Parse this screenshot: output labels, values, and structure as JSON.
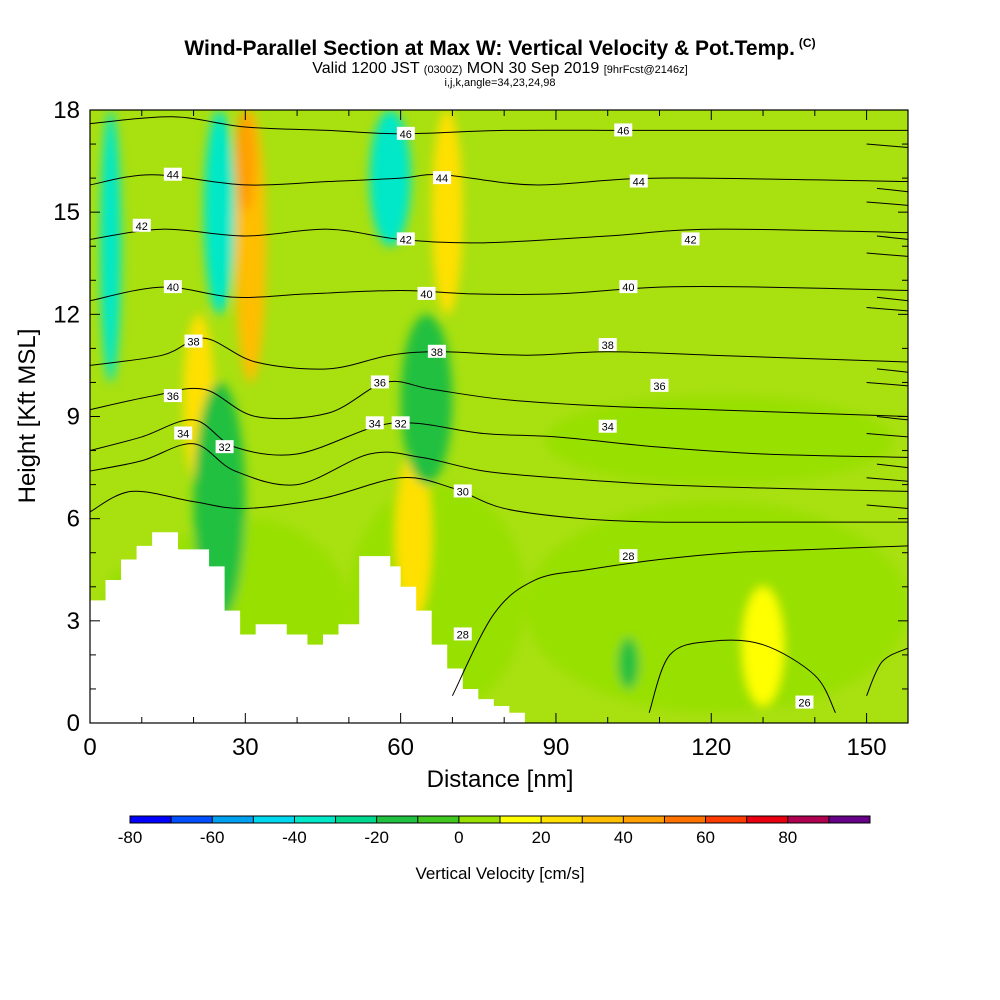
{
  "chart_data": {
    "type": "heatmap",
    "title": "Wind-Parallel Section at Max W: Vertical Velocity & Pot.Temp.",
    "title_flag": "(C)",
    "subtitle_main": "Valid 1200 JST",
    "subtitle_utc": "(0300Z)",
    "subtitle_date": "MON 30 Sep 2019",
    "subtitle_fcst": "[9hrFcst@2146z]",
    "subtitle2": "i,j,k,angle=34,23,24,98",
    "xlabel": "Distance [nm]",
    "ylabel": "Height [Kft MSL]",
    "xlim": [
      0,
      158
    ],
    "ylim": [
      0,
      18
    ],
    "x_ticks": [
      "0",
      "30",
      "60",
      "90",
      "120",
      "150"
    ],
    "y_ticks": [
      "0",
      "3",
      "6",
      "9",
      "12",
      "15",
      "18"
    ],
    "grid": false,
    "colorbar": {
      "label": "Vertical Velocity [cm/s]",
      "tick_labels": [
        "-80",
        "-60",
        "-40",
        "-20",
        "0",
        "20",
        "40",
        "60",
        "80"
      ],
      "levels": [
        -80,
        -70,
        -60,
        -50,
        -40,
        -30,
        -20,
        -10,
        0,
        10,
        20,
        30,
        40,
        50,
        60,
        70,
        80,
        90
      ],
      "colors": [
        "#0000ff",
        "#0050ff",
        "#00a0f0",
        "#00d8f0",
        "#00e8c8",
        "#00d890",
        "#20c040",
        "#40c820",
        "#98e000",
        "#ffff00",
        "#ffe000",
        "#ffbe00",
        "#ffa000",
        "#ff7200",
        "#ff3c00",
        "#e80010",
        "#b00050",
        "#660088"
      ]
    },
    "background_color": "#a8e010",
    "features": [
      {
        "name": "updraft",
        "x": [
          2,
          10
        ],
        "y": [
          0.5,
          4.5
        ],
        "value": 8
      },
      {
        "name": "updraft",
        "x": [
          10,
          50
        ],
        "y": [
          0.5,
          6.0
        ],
        "value": 6
      },
      {
        "name": "updraft",
        "x": [
          50,
          84
        ],
        "y": [
          0.3,
          7.0
        ],
        "value": 5
      },
      {
        "name": "updraft",
        "x": [
          84,
          158
        ],
        "y": [
          0.3,
          6.5
        ],
        "value": 7
      },
      {
        "name": "updraft",
        "x": [
          88,
          155
        ],
        "y": [
          7.0,
          9.6
        ],
        "value": 5
      },
      {
        "name": "updraft",
        "x": [
          28,
          34
        ],
        "y": [
          10,
          18
        ],
        "value": 30
      },
      {
        "name": "updraft",
        "x": [
          28,
          32
        ],
        "y": [
          15,
          18
        ],
        "value": 45
      },
      {
        "name": "updraft",
        "x": [
          66,
          72
        ],
        "y": [
          12,
          18
        ],
        "value": 25
      },
      {
        "name": "updraft",
        "x": [
          18,
          24
        ],
        "y": [
          7,
          12
        ],
        "value": 22
      },
      {
        "name": "updraft",
        "x": [
          59,
          66
        ],
        "y": [
          3,
          8
        ],
        "value": 20
      },
      {
        "name": "updraft",
        "x": [
          126,
          134
        ],
        "y": [
          0.5,
          4
        ],
        "value": 15
      },
      {
        "name": "downdraft",
        "x": [
          2,
          6
        ],
        "y": [
          10,
          18
        ],
        "value": -40
      },
      {
        "name": "downdraft",
        "x": [
          22,
          28
        ],
        "y": [
          12,
          18
        ],
        "value": -35
      },
      {
        "name": "downdraft",
        "x": [
          54,
          62
        ],
        "y": [
          14,
          18
        ],
        "value": -35
      },
      {
        "name": "downdraft",
        "x": [
          20,
          30
        ],
        "y": [
          3,
          10
        ],
        "value": -18
      },
      {
        "name": "downdraft",
        "x": [
          60,
          70
        ],
        "y": [
          7,
          12
        ],
        "value": -18
      },
      {
        "name": "downdraft",
        "x": [
          102,
          106
        ],
        "y": [
          1,
          2.5
        ],
        "value": -18
      }
    ],
    "terrain": {
      "x": [
        0,
        3,
        3,
        6,
        6,
        9,
        9,
        12,
        12,
        17,
        17,
        23,
        23,
        26,
        26,
        29,
        29,
        32,
        32,
        38,
        38,
        42,
        42,
        45,
        45,
        48,
        48,
        52,
        52,
        58,
        58,
        60,
        60,
        63,
        63,
        66,
        66,
        69,
        69,
        72,
        72,
        75,
        75,
        78,
        78,
        81,
        81,
        84,
        84
      ],
      "height": [
        3.6,
        3.6,
        4.2,
        4.2,
        4.8,
        4.8,
        5.2,
        5.2,
        5.6,
        5.6,
        5.1,
        5.1,
        4.6,
        4.6,
        3.3,
        3.3,
        2.6,
        2.6,
        2.9,
        2.9,
        2.6,
        2.6,
        2.3,
        2.3,
        2.6,
        2.6,
        2.9,
        2.9,
        4.9,
        4.9,
        4.6,
        4.6,
        4.0,
        4.0,
        3.3,
        3.3,
        2.3,
        2.3,
        1.6,
        1.6,
        1.0,
        1.0,
        0.7,
        0.7,
        0.5,
        0.5,
        0.3,
        0.3,
        0.0
      ]
    },
    "theta_contours": [
      {
        "level": "26",
        "label_at": [
          138,
          0.6
        ],
        "points": [
          [
            108,
            0.3
          ],
          [
            112,
            2.0
          ],
          [
            120,
            2.4
          ],
          [
            130,
            2.3
          ],
          [
            140,
            1.4
          ],
          [
            144,
            0.3
          ]
        ]
      },
      {
        "level": "28",
        "label_at": [
          72,
          2.6
        ],
        "points": [
          [
            70,
            0.8
          ],
          [
            78,
            3.2
          ],
          [
            86,
            4.2
          ],
          [
            96,
            4.5
          ],
          [
            110,
            4.8
          ],
          [
            124,
            5.0
          ],
          [
            140,
            5.1
          ],
          [
            158,
            5.2
          ]
        ]
      },
      {
        "level": "28",
        "label_at": [
          104,
          4.9
        ],
        "points": [
          [
            150,
            0.8
          ],
          [
            153,
            1.8
          ],
          [
            158,
            2.2
          ]
        ]
      },
      {
        "level": "30",
        "label_at": [
          72,
          6.8
        ],
        "points": [
          [
            0,
            6.2
          ],
          [
            8,
            6.8
          ],
          [
            20,
            6.5
          ],
          [
            30,
            6.3
          ],
          [
            45,
            6.6
          ],
          [
            60,
            7.2
          ],
          [
            70,
            6.9
          ],
          [
            80,
            6.3
          ],
          [
            95,
            6.0
          ],
          [
            110,
            5.9
          ],
          [
            130,
            5.9
          ],
          [
            158,
            5.9
          ]
        ]
      },
      {
        "level": "32",
        "label_at": [
          26,
          8.1
        ],
        "points": [
          [
            0,
            7.4
          ],
          [
            10,
            7.7
          ],
          [
            20,
            8.2
          ],
          [
            28,
            7.4
          ],
          [
            40,
            7.0
          ],
          [
            54,
            7.9
          ],
          [
            64,
            7.8
          ],
          [
            76,
            7.4
          ],
          [
            90,
            7.2
          ],
          [
            110,
            7.0
          ],
          [
            130,
            6.9
          ],
          [
            158,
            6.8
          ]
        ]
      },
      {
        "level": "32",
        "label_at": [
          60,
          8.8
        ],
        "points": [
          [
            150,
            6.4
          ],
          [
            158,
            6.3
          ]
        ]
      },
      {
        "level": "34",
        "label_at": [
          18,
          8.5
        ],
        "points": [
          [
            0,
            8.0
          ],
          [
            10,
            8.4
          ],
          [
            20,
            8.9
          ],
          [
            28,
            8.1
          ],
          [
            40,
            7.9
          ],
          [
            55,
            8.7
          ],
          [
            63,
            8.8
          ],
          [
            76,
            8.5
          ],
          [
            90,
            8.4
          ],
          [
            110,
            8.1
          ],
          [
            130,
            7.9
          ],
          [
            158,
            7.8
          ]
        ]
      },
      {
        "level": "34",
        "label_at": [
          55,
          8.8
        ],
        "points": [
          [
            150,
            7.2
          ],
          [
            158,
            7.1
          ]
        ]
      },
      {
        "level": "34",
        "label_at": [
          100,
          8.7
        ],
        "points": [
          [
            152,
            7.6
          ],
          [
            158,
            7.5
          ]
        ]
      },
      {
        "level": "36",
        "label_at": [
          16,
          9.6
        ],
        "points": [
          [
            0,
            9.2
          ],
          [
            12,
            9.6
          ],
          [
            22,
            9.8
          ],
          [
            32,
            9.0
          ],
          [
            46,
            9.1
          ],
          [
            57,
            10.0
          ],
          [
            66,
            9.8
          ],
          [
            80,
            9.5
          ],
          [
            100,
            9.3
          ],
          [
            120,
            9.2
          ],
          [
            158,
            9.0
          ]
        ]
      },
      {
        "level": "36",
        "label_at": [
          56,
          10.0
        ],
        "points": [
          [
            150,
            8.5
          ],
          [
            158,
            8.4
          ]
        ]
      },
      {
        "level": "36",
        "label_at": [
          110,
          9.9
        ],
        "points": [
          [
            152,
            9.0
          ],
          [
            158,
            8.9
          ]
        ]
      },
      {
        "level": "38",
        "label_at": [
          20,
          11.2
        ],
        "points": [
          [
            0,
            10.5
          ],
          [
            14,
            10.8
          ],
          [
            22,
            11.3
          ],
          [
            32,
            10.6
          ],
          [
            46,
            10.4
          ],
          [
            58,
            10.8
          ],
          [
            68,
            10.9
          ],
          [
            84,
            10.8
          ],
          [
            100,
            10.9
          ],
          [
            120,
            10.8
          ],
          [
            158,
            10.6
          ]
        ]
      },
      {
        "level": "38",
        "label_at": [
          67,
          10.9
        ],
        "points": [
          [
            150,
            10.0
          ],
          [
            158,
            9.9
          ]
        ]
      },
      {
        "level": "38",
        "label_at": [
          100,
          11.1
        ],
        "points": [
          [
            152,
            10.4
          ],
          [
            158,
            10.3
          ]
        ]
      },
      {
        "level": "40",
        "label_at": [
          16,
          12.8
        ],
        "points": [
          [
            0,
            12.4
          ],
          [
            14,
            12.8
          ],
          [
            28,
            12.5
          ],
          [
            42,
            12.6
          ],
          [
            60,
            12.7
          ],
          [
            74,
            12.6
          ],
          [
            90,
            12.6
          ],
          [
            110,
            12.8
          ],
          [
            130,
            12.8
          ],
          [
            158,
            12.7
          ]
        ]
      },
      {
        "level": "40",
        "label_at": [
          65,
          12.6
        ],
        "points": [
          [
            150,
            12.2
          ],
          [
            158,
            12.1
          ]
        ]
      },
      {
        "level": "40",
        "label_at": [
          104,
          12.8
        ],
        "points": [
          [
            152,
            12.5
          ],
          [
            158,
            12.4
          ]
        ]
      },
      {
        "level": "42",
        "label_at": [
          10,
          14.6
        ],
        "points": [
          [
            0,
            14.2
          ],
          [
            14,
            14.5
          ],
          [
            30,
            14.3
          ],
          [
            46,
            14.5
          ],
          [
            60,
            14.2
          ],
          [
            76,
            14.1
          ],
          [
            100,
            14.3
          ],
          [
            120,
            14.5
          ],
          [
            158,
            14.4
          ]
        ]
      },
      {
        "level": "42",
        "label_at": [
          61,
          14.2
        ],
        "points": [
          [
            150,
            13.8
          ],
          [
            158,
            13.7
          ]
        ]
      },
      {
        "level": "42",
        "label_at": [
          116,
          14.2
        ],
        "points": [
          [
            152,
            14.3
          ],
          [
            158,
            14.2
          ]
        ]
      },
      {
        "level": "44",
        "label_at": [
          16,
          16.1
        ],
        "points": [
          [
            0,
            15.8
          ],
          [
            12,
            16.1
          ],
          [
            30,
            15.8
          ],
          [
            46,
            15.9
          ],
          [
            60,
            16.0
          ],
          [
            68,
            16.1
          ],
          [
            86,
            15.8
          ],
          [
            110,
            16.0
          ],
          [
            158,
            15.9
          ]
        ]
      },
      {
        "level": "44",
        "label_at": [
          68,
          16.0
        ],
        "points": [
          [
            150,
            15.3
          ],
          [
            158,
            15.2
          ]
        ]
      },
      {
        "level": "44",
        "label_at": [
          106,
          15.9
        ],
        "points": [
          [
            152,
            15.7
          ],
          [
            158,
            15.6
          ]
        ]
      },
      {
        "level": "46",
        "label_at": [
          61,
          17.3
        ],
        "points": [
          [
            0,
            17.6
          ],
          [
            16,
            17.8
          ],
          [
            30,
            17.5
          ],
          [
            46,
            17.4
          ],
          [
            60,
            17.3
          ],
          [
            80,
            17.4
          ],
          [
            104,
            17.4
          ],
          [
            126,
            17.4
          ],
          [
            158,
            17.4
          ]
        ]
      },
      {
        "level": "46",
        "label_at": [
          103,
          17.4
        ],
        "points": [
          [
            150,
            17.0
          ],
          [
            158,
            16.9
          ]
        ]
      }
    ]
  }
}
